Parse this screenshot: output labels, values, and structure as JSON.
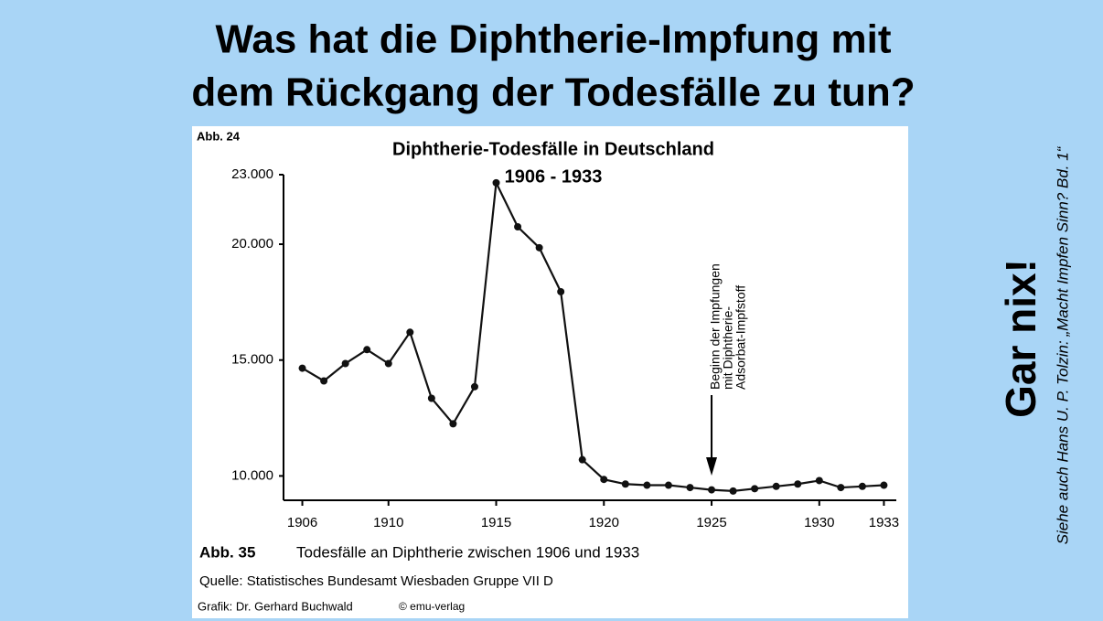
{
  "slide_title": [
    "Was hat die Diphtherie-Impfung mit",
    "dem Rückgang der Todesfälle zu tun?"
  ],
  "figure_label": "Abb. 24",
  "chart_data": {
    "type": "line",
    "title": [
      "Diphtherie-Todesfälle in Deutschland",
      "1906 - 1933"
    ],
    "x": [
      1906,
      1907,
      1908,
      1909,
      1910,
      1911,
      1912,
      1913,
      1914,
      1915,
      1916,
      1917,
      1918,
      1919,
      1920,
      1921,
      1922,
      1923,
      1924,
      1925,
      1926,
      1927,
      1928,
      1929,
      1930,
      1931,
      1932,
      1933
    ],
    "series": [
      {
        "name": "Diphtherie-Todesfälle",
        "color": "#111111",
        "values": [
          14650,
          14100,
          14850,
          15450,
          14850,
          16200,
          13350,
          12250,
          13850,
          22650,
          20750,
          19850,
          17950,
          10700,
          9850,
          9650,
          9600,
          9600,
          9500,
          9400,
          9350,
          9450,
          9550,
          9650,
          9800,
          9500,
          9550,
          9600
        ]
      }
    ],
    "xlim": [
      1905,
      1934
    ],
    "ylim": [
      8950,
      23000
    ],
    "xticks": [
      1906,
      1910,
      1915,
      1920,
      1925,
      1930,
      1933
    ],
    "yticks": [
      {
        "value": 10000,
        "label": "10.000"
      },
      {
        "value": 15000,
        "label": "15.000"
      },
      {
        "value": 20000,
        "label": "20.000"
      },
      {
        "value": 23000,
        "label": "23.000"
      }
    ],
    "annotation": {
      "x": 1925,
      "lines": [
        "Beginn der Impfungen",
        "mit Diphtherie-",
        "Adsorbat-Impfstoff"
      ]
    }
  },
  "caption": {
    "label": "Abb. 35",
    "text": "Todesfälle an Diphtherie zwischen 1906 und 1933"
  },
  "source": "Quelle: Statistisches Bundesamt Wiesbaden Gruppe VII D",
  "credit": [
    "Grafik: Dr. Gerhard Buchwald",
    "© emu-verlag"
  ],
  "side_heading": "Gar nix!",
  "side_reference": "Siehe auch Hans U. P. Tolzin: „Macht Impfen Sinn? Bd. 1“"
}
